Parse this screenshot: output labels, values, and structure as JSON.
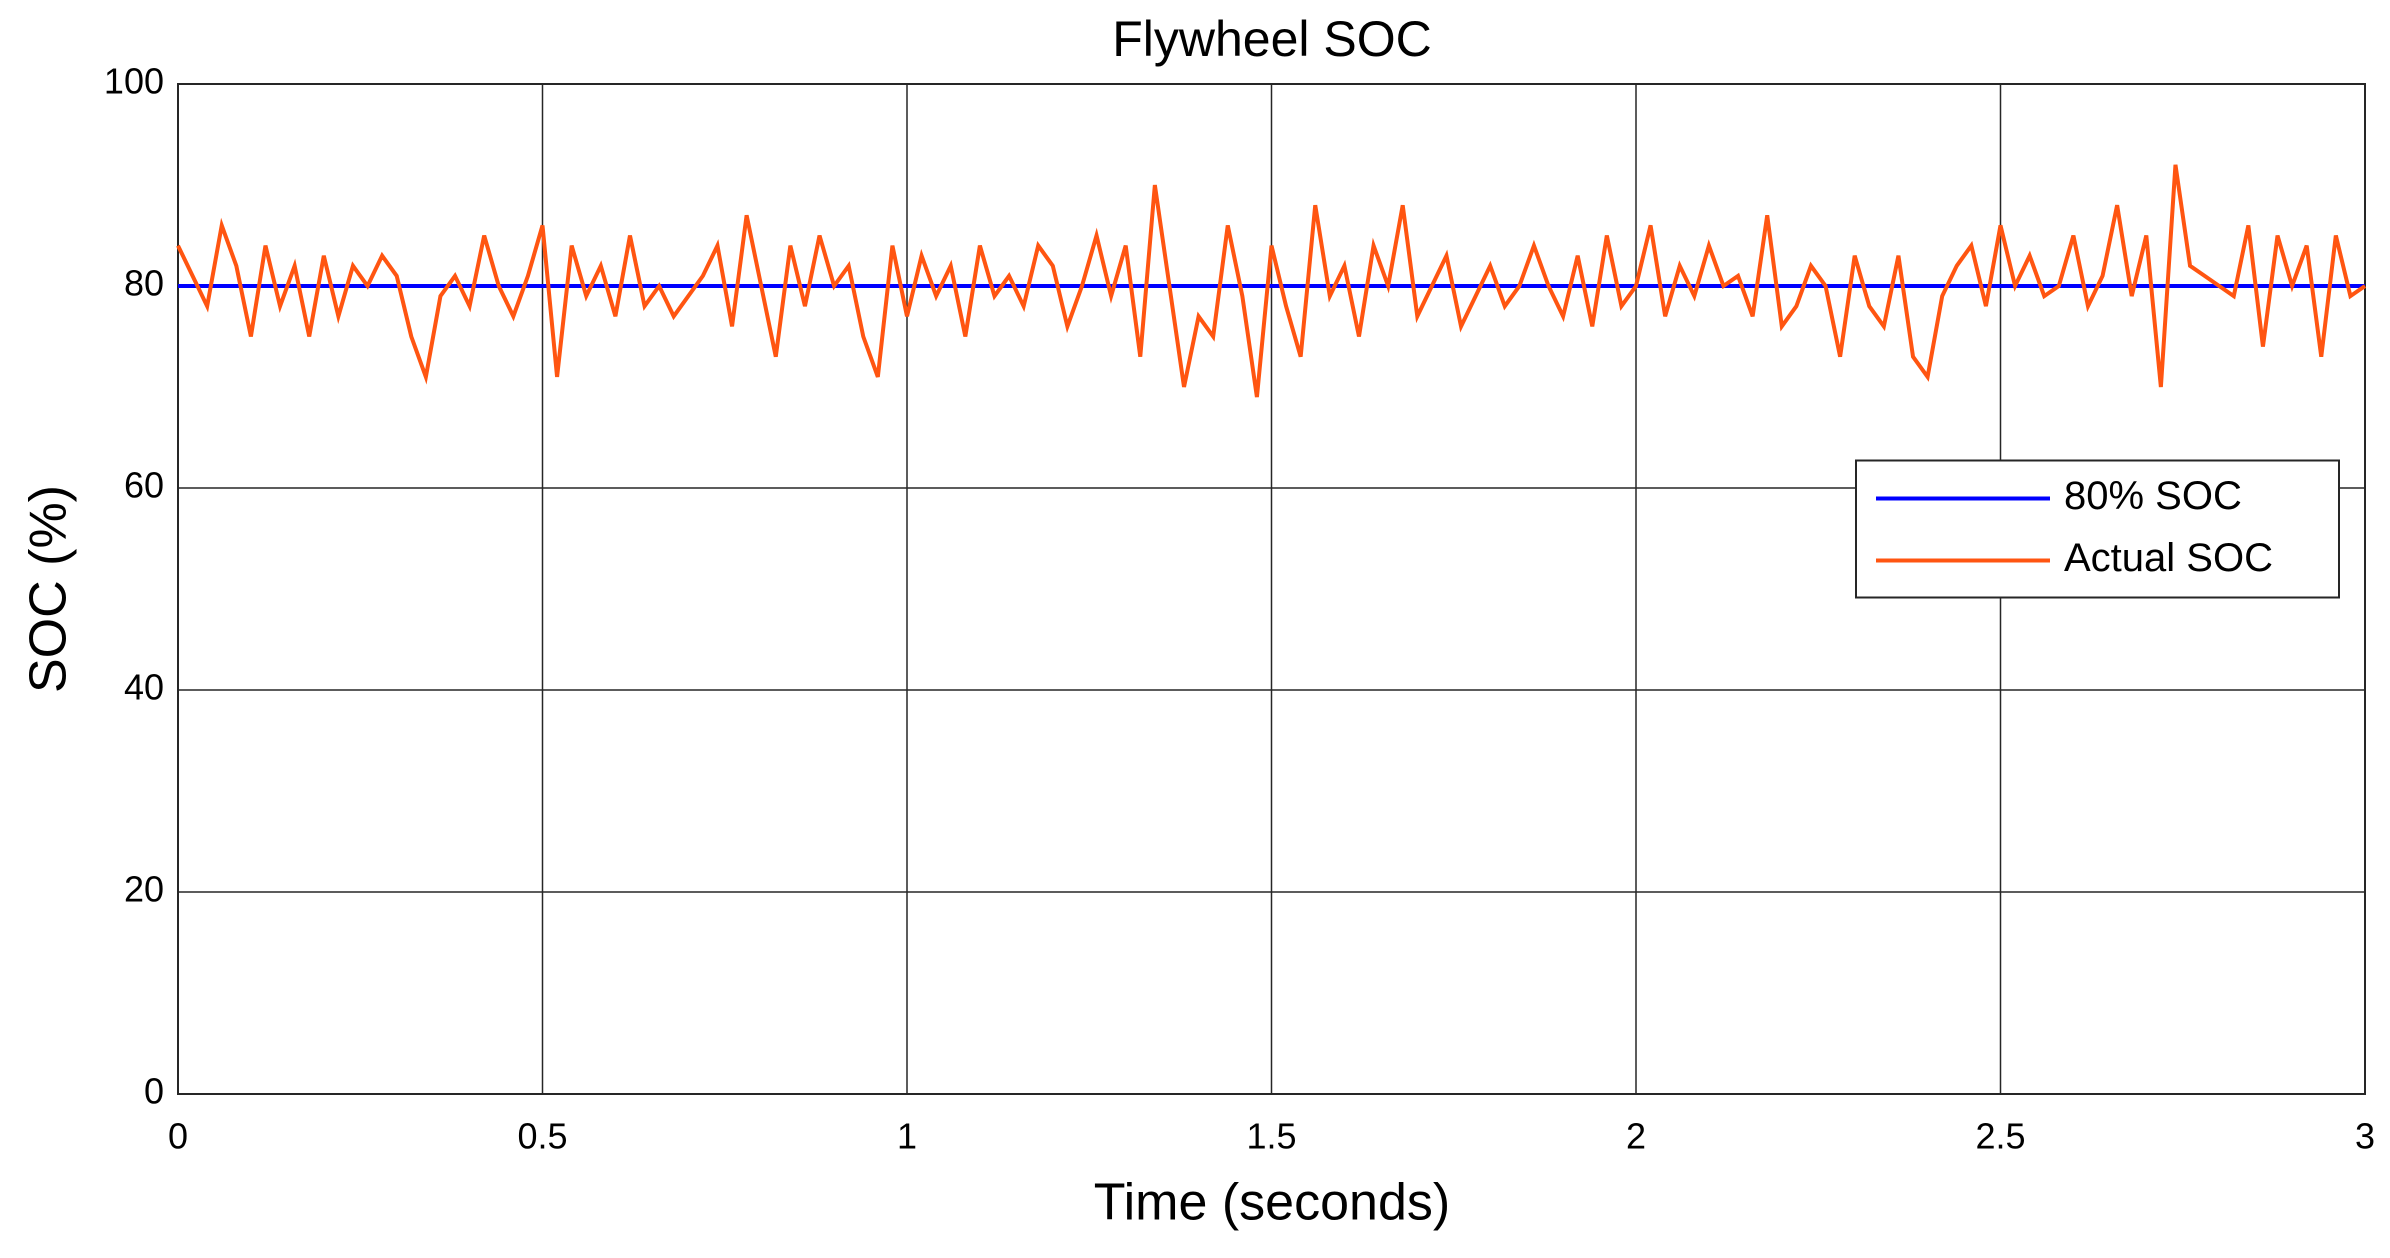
{
  "chart_data": {
    "type": "line",
    "title": "Flywheel SOC",
    "x_label": "Time (seconds)",
    "y_label": "SOC (%)",
    "xlim": [
      0,
      3
    ],
    "ylim": [
      0,
      100
    ],
    "xticks": [
      0,
      0.5,
      1,
      1.5,
      2,
      2.5,
      3
    ],
    "yticks": [
      0,
      20,
      40,
      60,
      80,
      100
    ],
    "grid": true,
    "legend": "right",
    "series": [
      {
        "name": "80% SOC",
        "color": "#0000ff",
        "x": [
          0,
          3
        ],
        "values": [
          80,
          80
        ]
      },
      {
        "name": "Actual SOC",
        "color": "#ff5511",
        "x": [
          0,
          0.02,
          0.04,
          0.06,
          0.08,
          0.1,
          0.12,
          0.14,
          0.16,
          0.18,
          0.2,
          0.22,
          0.24,
          0.26,
          0.28,
          0.3,
          0.32,
          0.34,
          0.36,
          0.38,
          0.4,
          0.42,
          0.44,
          0.46,
          0.48,
          0.5,
          0.52,
          0.54,
          0.56,
          0.58,
          0.6,
          0.62,
          0.64,
          0.66,
          0.68,
          0.7,
          0.72,
          0.74,
          0.76,
          0.78,
          0.8,
          0.82,
          0.84,
          0.86,
          0.88,
          0.9,
          0.92,
          0.94,
          0.96,
          0.98,
          1,
          1.02,
          1.04,
          1.06,
          1.08,
          1.1,
          1.12,
          1.14,
          1.16,
          1.18,
          1.2,
          1.22,
          1.24,
          1.26,
          1.28,
          1.3,
          1.32,
          1.34,
          1.36,
          1.38,
          1.4,
          1.42,
          1.44,
          1.46,
          1.48,
          1.5,
          1.52,
          1.54,
          1.56,
          1.58,
          1.6,
          1.62,
          1.64,
          1.66,
          1.68,
          1.7,
          1.72,
          1.74,
          1.76,
          1.78,
          1.8,
          1.82,
          1.84,
          1.86,
          1.88,
          1.9,
          1.92,
          1.94,
          1.96,
          1.98,
          2,
          2.02,
          2.04,
          2.06,
          2.08,
          2.1,
          2.12,
          2.14,
          2.16,
          2.18,
          2.2,
          2.22,
          2.24,
          2.26,
          2.28,
          2.3,
          2.32,
          2.34,
          2.36,
          2.38,
          2.4,
          2.42,
          2.44,
          2.46,
          2.48,
          2.5,
          2.52,
          2.54,
          2.56,
          2.58,
          2.6,
          2.62,
          2.64,
          2.66,
          2.68,
          2.7,
          2.72,
          2.74,
          2.76,
          2.78,
          2.8,
          2.82,
          2.84,
          2.86,
          2.88,
          2.9,
          2.92,
          2.94,
          2.96,
          2.98,
          3
        ],
        "values": [
          84,
          81,
          78,
          86,
          82,
          75,
          84,
          78,
          82,
          75,
          83,
          77,
          82,
          80,
          83,
          81,
          75,
          71,
          79,
          81,
          78,
          85,
          80,
          77,
          81,
          86,
          71,
          84,
          79,
          82,
          77,
          85,
          78,
          80,
          77,
          79,
          81,
          84,
          76,
          87,
          80,
          73,
          84,
          78,
          85,
          80,
          82,
          75,
          71,
          84,
          77,
          83,
          79,
          82,
          75,
          84,
          79,
          81,
          78,
          84,
          82,
          76,
          80,
          85,
          79,
          84,
          73,
          90,
          80,
          70,
          77,
          75,
          86,
          79,
          69,
          84,
          78,
          73,
          88,
          79,
          82,
          75,
          84,
          80,
          88,
          77,
          80,
          83,
          76,
          79,
          82,
          78,
          80,
          84,
          80,
          77,
          83,
          76,
          85,
          78,
          80,
          86,
          77,
          82,
          79,
          84,
          80,
          81,
          77,
          87,
          76,
          78,
          82,
          80,
          73,
          83,
          78,
          76,
          83,
          73,
          71,
          79,
          82,
          84,
          78,
          86,
          80,
          83,
          79,
          80,
          85,
          78,
          81,
          88,
          79,
          85,
          70,
          92,
          82,
          81,
          80,
          79,
          86,
          74,
          85,
          80,
          84,
          73,
          85,
          79,
          80
        ]
      }
    ]
  }
}
